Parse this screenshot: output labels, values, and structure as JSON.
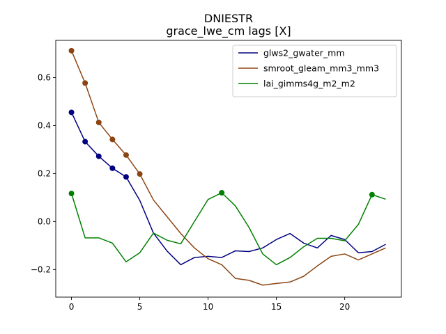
{
  "chart_data": {
    "type": "line",
    "title": "DNIESTR",
    "subtitle": "grace_lwe_cm lags [X]",
    "xlabel": "",
    "ylabel": "",
    "xlim": [
      -1.15,
      24.15
    ],
    "ylim": [
      -0.315,
      0.755
    ],
    "xticks": [
      0,
      5,
      10,
      15,
      20
    ],
    "yticks": [
      -0.2,
      0.0,
      0.2,
      0.4,
      0.6
    ],
    "ytick_labels": [
      "−0.2",
      "0.0",
      "0.2",
      "0.4",
      "0.6"
    ],
    "grid": false,
    "legend_position": "top-right",
    "x": [
      0,
      1,
      2,
      3,
      4,
      5,
      6,
      7,
      8,
      9,
      10,
      11,
      12,
      13,
      14,
      15,
      16,
      17,
      18,
      19,
      20,
      21,
      22,
      23
    ],
    "series": [
      {
        "name": "glws2_gwater_mm",
        "color": "#000080",
        "values": [
          0.455,
          0.333,
          0.272,
          0.222,
          0.186,
          0.088,
          -0.048,
          -0.123,
          -0.18,
          -0.15,
          -0.145,
          -0.15,
          -0.122,
          -0.125,
          -0.11,
          -0.075,
          -0.05,
          -0.09,
          -0.11,
          -0.058,
          -0.075,
          -0.13,
          -0.125,
          -0.095
        ],
        "markers": [
          0,
          1,
          2,
          3,
          4
        ]
      },
      {
        "name": "smroot_gleam_mm3_mm3",
        "color": "#8b4513",
        "values": [
          0.712,
          0.577,
          0.413,
          0.342,
          0.277,
          0.198,
          0.09,
          0.02,
          -0.05,
          -0.11,
          -0.155,
          -0.18,
          -0.237,
          -0.245,
          -0.265,
          -0.258,
          -0.252,
          -0.228,
          -0.185,
          -0.145,
          -0.135,
          -0.16,
          -0.135,
          -0.11
        ],
        "markers": [
          0,
          1,
          2,
          3,
          4,
          5
        ]
      },
      {
        "name": "lai_gimms4g_m2_m2",
        "color": "#008000",
        "values": [
          0.117,
          -0.068,
          -0.068,
          -0.09,
          -0.168,
          -0.13,
          -0.048,
          -0.078,
          -0.093,
          0.0,
          0.092,
          0.12,
          0.065,
          -0.025,
          -0.135,
          -0.18,
          -0.15,
          -0.105,
          -0.07,
          -0.07,
          -0.08,
          -0.012,
          0.112,
          0.093
        ],
        "markers": [
          0,
          11,
          22
        ]
      }
    ]
  }
}
